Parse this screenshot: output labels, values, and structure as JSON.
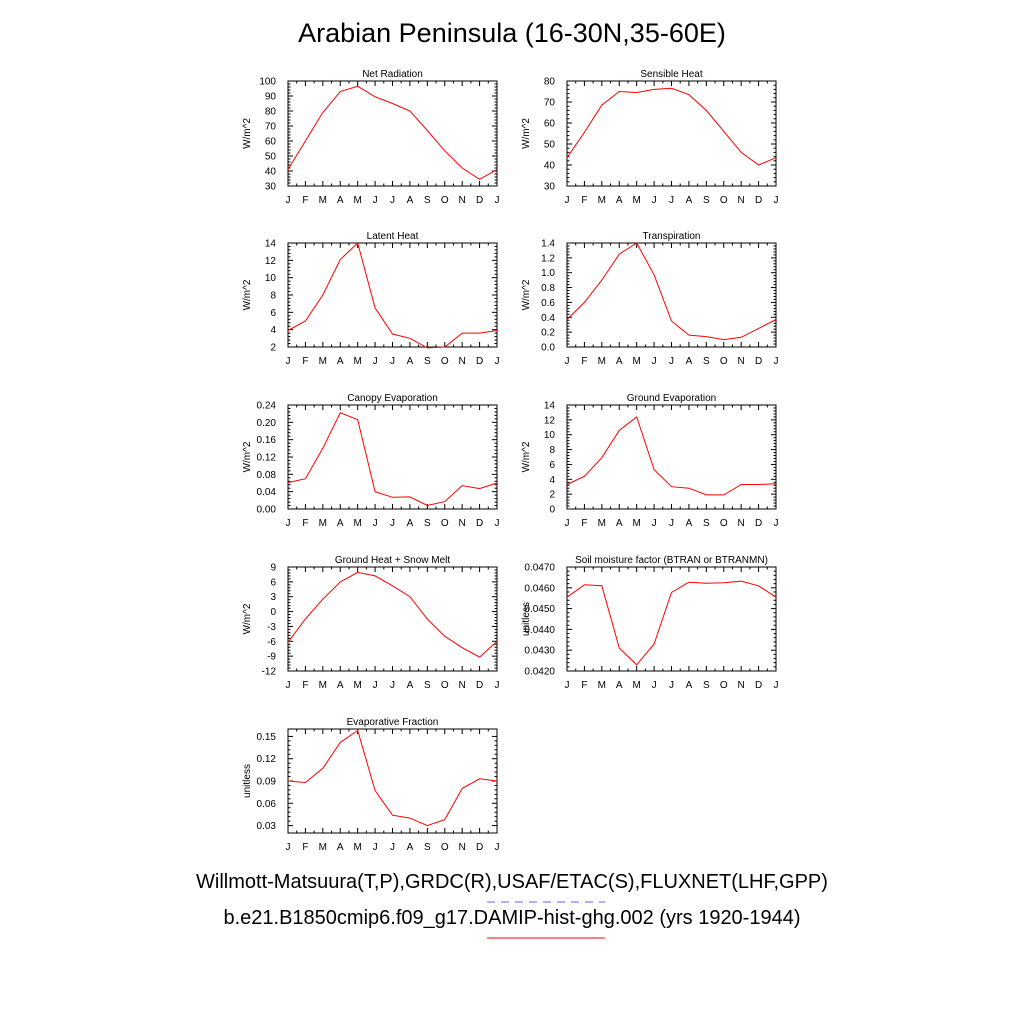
{
  "title": "Arabian Peninsula (16-30N,35-60E)",
  "months": [
    "J",
    "F",
    "M",
    "A",
    "M",
    "J",
    "J",
    "A",
    "S",
    "O",
    "N",
    "D",
    "J"
  ],
  "line_color": "#ff0000",
  "chart_data": [
    {
      "type": "line",
      "title": "Net Radiation",
      "ylabel": "W/m^2",
      "ylim": [
        30,
        100
      ],
      "yticks": [
        30,
        40,
        50,
        60,
        70,
        80,
        90,
        100
      ],
      "ytick_labels": [
        "30",
        "40",
        "50",
        "60",
        "70",
        "80",
        "90",
        "100"
      ],
      "series": [
        {
          "values": [
            41,
            60,
            79,
            93,
            96.5,
            89.5,
            85,
            80,
            67,
            53.5,
            42,
            34.5,
            41
          ]
        }
      ]
    },
    {
      "type": "line",
      "title": "Sensible Heat",
      "ylabel": "W/m^2",
      "ylim": [
        30,
        80
      ],
      "yticks": [
        30,
        40,
        50,
        60,
        70,
        80
      ],
      "ytick_labels": [
        "30",
        "40",
        "50",
        "60",
        "70",
        "80"
      ],
      "series": [
        {
          "values": [
            43.5,
            55.5,
            68.5,
            75,
            74.5,
            76,
            76.5,
            73.5,
            66,
            56,
            46,
            40,
            43.5
          ]
        }
      ]
    },
    {
      "type": "line",
      "title": "Latent Heat",
      "ylabel": "W/m^2",
      "ylim": [
        2,
        14
      ],
      "yticks": [
        2,
        4,
        6,
        8,
        10,
        12,
        14
      ],
      "ytick_labels": [
        "2",
        "4",
        "6",
        "8",
        "10",
        "12",
        "14"
      ],
      "series": [
        {
          "values": [
            3.9,
            5.0,
            8.0,
            12.1,
            14.0,
            6.5,
            3.5,
            3.0,
            1.9,
            2.0,
            3.6,
            3.6,
            3.9
          ]
        }
      ]
    },
    {
      "type": "line",
      "title": "Transpiration",
      "ylabel": "W/m^2",
      "ylim": [
        0,
        1.4
      ],
      "yticks": [
        0,
        0.2,
        0.4,
        0.6,
        0.8,
        1.0,
        1.2,
        1.4
      ],
      "ytick_labels": [
        "0.0",
        "0.2",
        "0.4",
        "0.6",
        "0.8",
        "1.0",
        "1.2",
        "1.4"
      ],
      "series": [
        {
          "values": [
            0.37,
            0.6,
            0.9,
            1.25,
            1.4,
            0.97,
            0.35,
            0.16,
            0.14,
            0.1,
            0.13,
            0.25,
            0.37
          ]
        }
      ]
    },
    {
      "type": "line",
      "title": "Canopy Evaporation",
      "ylabel": "W/m^2",
      "ylim": [
        0,
        0.24
      ],
      "yticks": [
        0,
        0.04,
        0.08,
        0.12,
        0.16,
        0.2,
        0.24
      ],
      "ytick_labels": [
        "0.00",
        "0.04",
        "0.08",
        "0.12",
        "0.16",
        "0.20",
        "0.24"
      ],
      "series": [
        {
          "values": [
            0.061,
            0.07,
            0.14,
            0.222,
            0.206,
            0.04,
            0.027,
            0.028,
            0.008,
            0.017,
            0.054,
            0.047,
            0.06
          ]
        }
      ]
    },
    {
      "type": "line",
      "title": "Ground Evaporation",
      "ylabel": "W/m^2",
      "ylim": [
        0,
        14
      ],
      "yticks": [
        0,
        2,
        4,
        6,
        8,
        10,
        12,
        14
      ],
      "ytick_labels": [
        "0",
        "2",
        "4",
        "6",
        "8",
        "10",
        "12",
        "14"
      ],
      "series": [
        {
          "values": [
            3.3,
            4.4,
            6.9,
            10.6,
            12.4,
            5.3,
            3.0,
            2.8,
            1.9,
            1.9,
            3.3,
            3.3,
            3.4
          ]
        }
      ]
    },
    {
      "type": "line",
      "title": "Ground Heat + Snow Melt",
      "ylabel": "W/m^2",
      "ylim": [
        -12,
        9
      ],
      "yticks": [
        -12,
        -9,
        -6,
        -3,
        0,
        3,
        6,
        9
      ],
      "ytick_labels": [
        "-12",
        "-9",
        "-6",
        "-3",
        "0",
        "3",
        "6",
        "9"
      ],
      "series": [
        {
          "values": [
            -6.2,
            -1.5,
            2.5,
            6.0,
            7.9,
            7.2,
            5.2,
            3.0,
            -1.5,
            -5.0,
            -7.3,
            -9.2,
            -6.0
          ]
        }
      ]
    },
    {
      "type": "line",
      "title": "Soil moisture factor (BTRAN or BTRANMN)",
      "ylabel": "unitless",
      "ylim": [
        0.042,
        0.047
      ],
      "yticks": [
        0.042,
        0.043,
        0.044,
        0.045,
        0.046,
        0.047
      ],
      "ytick_labels": [
        "0.0420",
        "0.0430",
        "0.0440",
        "0.0450",
        "0.0460",
        "0.0470"
      ],
      "series": [
        {
          "values": [
            0.04555,
            0.04615,
            0.0461,
            0.0431,
            0.0423,
            0.0433,
            0.04578,
            0.04627,
            0.04622,
            0.04624,
            0.04632,
            0.04609,
            0.04555
          ]
        }
      ]
    },
    {
      "type": "line",
      "title": "Evaporative Fraction",
      "ylabel": "unitless",
      "ylim": [
        0.02,
        0.16
      ],
      "yticks": [
        0.03,
        0.06,
        0.09,
        0.12,
        0.15
      ],
      "ytick_labels": [
        "0.03",
        "0.06",
        "0.09",
        "0.12",
        "0.15"
      ],
      "series": [
        {
          "values": [
            0.09,
            0.088,
            0.107,
            0.142,
            0.158,
            0.077,
            0.044,
            0.04,
            0.03,
            0.038,
            0.08,
            0.093,
            0.09
          ]
        }
      ]
    }
  ],
  "legend": {
    "observations": "Willmott-Matsuura(T,P),GRDC(R),USAF/ETAC(S),FLUXNET(LHF,GPP)",
    "model": "b.e21.B1850cmip6.f09_g17.DAMIP-hist-ghg.002 (yrs 1920-1944)",
    "observations_color": "#6060ff",
    "model_color": "#ff0000"
  }
}
